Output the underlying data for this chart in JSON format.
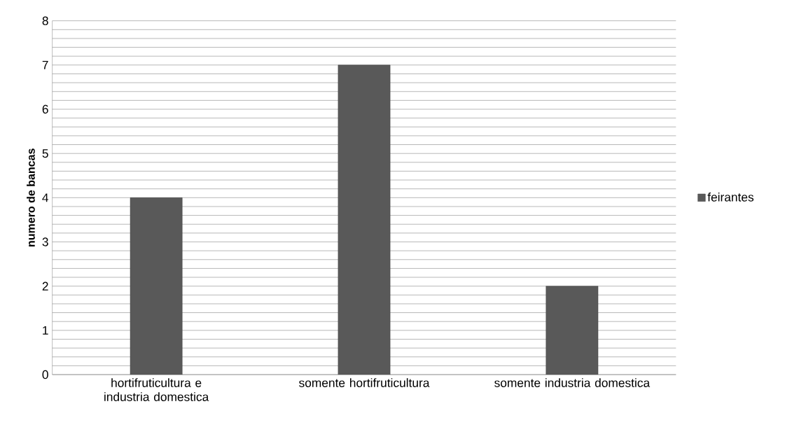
{
  "chart_data": {
    "type": "bar",
    "ylabel": "numero de bancas",
    "categories": [
      "hortifruticultura e industria domestica",
      "somente hortifruticultura",
      "somente industria domestica"
    ],
    "series": [
      {
        "name": "feirantes",
        "color": "#595959",
        "values": [
          4,
          7,
          2
        ]
      }
    ],
    "ylim": [
      0,
      8
    ],
    "yticks": [
      0,
      {
        "value": 0.2,
        "label": null
      },
      {
        "value": 0.4,
        "label": null
      },
      {
        "value": 0.6,
        "label": null
      },
      {
        "value": 0.8,
        "label": null
      },
      1,
      {
        "value": 1.2,
        "label": null
      },
      {
        "value": 1.4,
        "label": null
      },
      {
        "value": 1.6,
        "label": null
      },
      {
        "value": 1.8,
        "label": null
      },
      2,
      {
        "value": 2.2,
        "label": null
      },
      {
        "value": 2.4,
        "label": null
      },
      {
        "value": 2.6,
        "label": null
      },
      {
        "value": 2.8,
        "label": null
      },
      3,
      {
        "value": 3.2,
        "label": null
      },
      {
        "value": 3.4,
        "label": null
      },
      {
        "value": 3.6,
        "label": null
      },
      {
        "value": 3.8,
        "label": null
      },
      4,
      {
        "value": 4.2,
        "label": null
      },
      {
        "value": 4.4,
        "label": null
      },
      {
        "value": 4.6,
        "label": null
      },
      {
        "value": 4.8,
        "label": null
      },
      5,
      {
        "value": 5.2,
        "label": null
      },
      {
        "value": 5.4,
        "label": null
      },
      {
        "value": 5.6,
        "label": null
      },
      {
        "value": 5.8,
        "label": null
      },
      6,
      {
        "value": 6.2,
        "label": null
      },
      {
        "value": 6.4,
        "label": null
      },
      {
        "value": 6.6,
        "label": null
      },
      {
        "value": 6.8,
        "label": null
      },
      7,
      {
        "value": 7.2,
        "label": null
      },
      {
        "value": 7.4,
        "label": null
      },
      {
        "value": 7.6,
        "label": null
      },
      {
        "value": 7.8,
        "label": null
      },
      8
    ],
    "grid": "y",
    "legend": "right"
  }
}
